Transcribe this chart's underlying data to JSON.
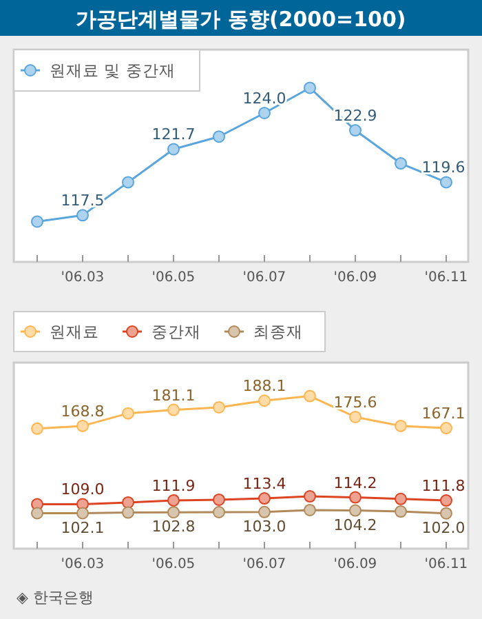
{
  "chart_data": [
    {
      "type": "line",
      "title": "가공단계별물가 동향(2000=100)",
      "categories": [
        null,
        "'06.03",
        null,
        "'06.05",
        null,
        "'06.07",
        null,
        "'06.09",
        null,
        "'06.11"
      ],
      "marker": "circle",
      "legend": "top left",
      "series": [
        {
          "name": "원재료 및 중간재",
          "color": "#5aa6dc",
          "values": [
            117.1,
            117.5,
            119.6,
            121.7,
            122.5,
            124.0,
            125.6,
            122.9,
            120.8,
            119.6
          ],
          "value_labels": [
            null,
            "117.5",
            null,
            "121.7",
            null,
            "124.0",
            null,
            "122.9",
            null,
            "119.6"
          ]
        }
      ]
    },
    {
      "type": "line",
      "categories": [
        null,
        "'06.03",
        null,
        "'06.05",
        null,
        "'06.07",
        null,
        "'06.09",
        null,
        "'06.11"
      ],
      "marker": "circle",
      "legend": "top",
      "annotations": [
        "◈ 한국은행"
      ],
      "series": [
        {
          "name": "원재료",
          "color": "#ffb650",
          "values": [
            166.7,
            168.8,
            178.4,
            181.1,
            183.0,
            188.1,
            191.6,
            175.6,
            168.8,
            167.1
          ],
          "value_labels": [
            null,
            "168.8",
            null,
            "181.1",
            null,
            "188.1",
            null,
            "175.6",
            null,
            "167.1"
          ]
        },
        {
          "name": "중간재",
          "color": "#dd4422",
          "values": [
            108.9,
            109.0,
            110.3,
            111.9,
            112.4,
            113.4,
            115.0,
            114.2,
            113.0,
            111.8
          ],
          "value_labels": [
            null,
            "109.0",
            null,
            "111.9",
            null,
            "113.4",
            null,
            "114.2",
            null,
            "111.8"
          ]
        },
        {
          "name": "최종재",
          "color": "#b08a5a",
          "values": [
            102.1,
            102.1,
            102.6,
            102.8,
            102.9,
            103.0,
            104.5,
            104.2,
            103.4,
            102.0
          ],
          "value_labels": [
            null,
            "102.1",
            null,
            "102.8",
            null,
            "103.0",
            null,
            "104.2",
            null,
            "102.0"
          ]
        }
      ]
    }
  ]
}
